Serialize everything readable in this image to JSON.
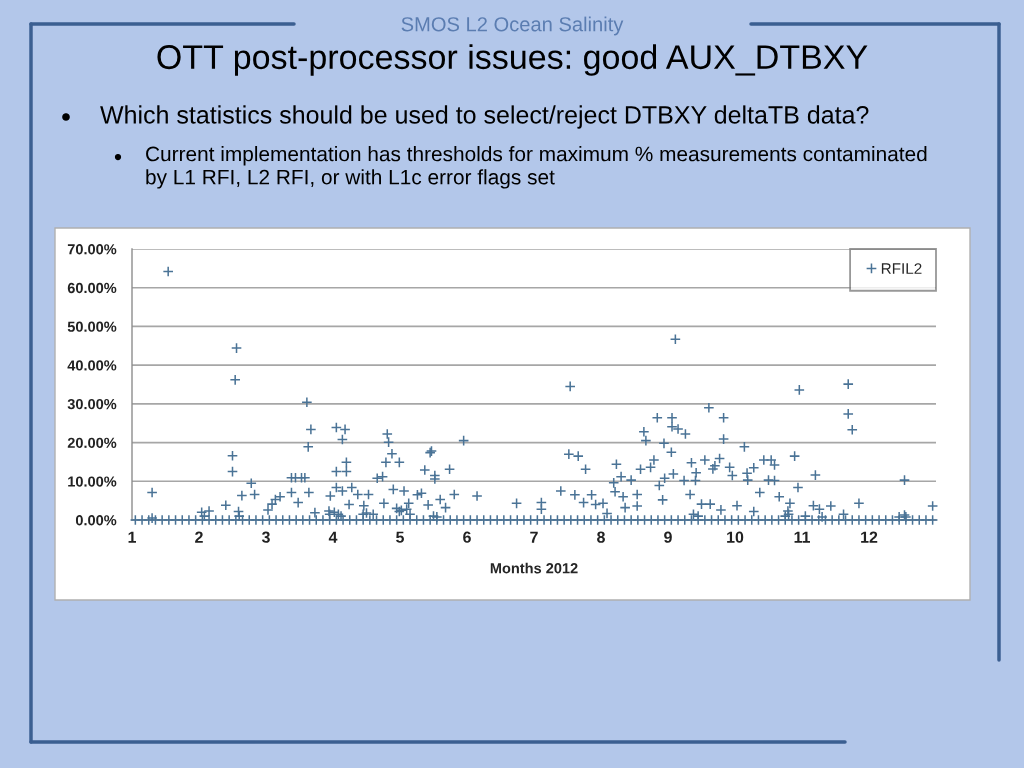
{
  "chart_data": {
    "type": "scatter",
    "title": "OTT post-processor issues: good AUX_DTBXY",
    "annotations": [
      "SMOS L2 Ocean Salinity",
      "Which statistics should be used to select/reject DTBXY deltaTB data?",
      "Current implementation has thresholds for maximum % measurements contaminated\nby L1 RFI, L2 RFI, or with L1c error flags set"
    ],
    "xlabel": "Months 2012",
    "xlim": [
      1,
      13
    ],
    "xticks": [
      1,
      2,
      3,
      4,
      5,
      6,
      7,
      8,
      9,
      10,
      11,
      12
    ],
    "ylim": [
      0,
      70
    ],
    "yticks": [
      {
        "value": 0,
        "label": "0.00%"
      },
      {
        "value": 10,
        "label": "10.00%"
      },
      {
        "value": 20,
        "label": "20.00%"
      },
      {
        "value": 30,
        "label": "30.00%"
      },
      {
        "value": 40,
        "label": "40.00%"
      },
      {
        "value": 50,
        "label": "50.00%"
      },
      {
        "value": 60,
        "label": "60.00%"
      },
      {
        "value": 70,
        "label": "70.00%"
      }
    ],
    "grid": "y",
    "legend": "top right",
    "marker": "cross",
    "series": [
      {
        "name": "RFIL2",
        "color": "#4a7396",
        "x": [
          1.3,
          1.3,
          1.54,
          2.04,
          2.08,
          2.15,
          2.4,
          2.5,
          2.5,
          2.54,
          2.56,
          2.59,
          2.6,
          2.64,
          2.78,
          2.83,
          3.03,
          3.09,
          3.14,
          3.21,
          3.38,
          3.38,
          3.44,
          3.48,
          3.53,
          3.58,
          3.61,
          3.63,
          3.64,
          3.67,
          3.73,
          3.94,
          3.95,
          3.96,
          4.02,
          4.05,
          4.05,
          4.05,
          4.08,
          4.12,
          4.14,
          4.14,
          4.18,
          4.2,
          4.2,
          4.24,
          4.28,
          4.37,
          4.45,
          4.46,
          4.5,
          4.53,
          4.6,
          4.66,
          4.74,
          4.76,
          4.79,
          4.81,
          4.83,
          4.88,
          4.9,
          4.95,
          4.99,
          4.99,
          5.02,
          5.06,
          5.1,
          5.13,
          5.15,
          5.26,
          5.32,
          5.37,
          5.42,
          5.45,
          5.47,
          5.5,
          5.52,
          5.52,
          5.55,
          5.6,
          5.68,
          5.74,
          5.81,
          5.95,
          6.15,
          6.74,
          7.11,
          7.11,
          7.4,
          7.52,
          7.54,
          7.61,
          7.66,
          7.74,
          7.77,
          7.86,
          7.92,
          8.03,
          8.09,
          8.19,
          8.21,
          8.23,
          8.3,
          8.33,
          8.36,
          8.45,
          8.54,
          8.54,
          8.59,
          8.64,
          8.67,
          8.74,
          8.79,
          8.84,
          8.87,
          8.92,
          8.94,
          8.95,
          9.05,
          9.06,
          9.06,
          9.08,
          9.11,
          9.15,
          9.24,
          9.26,
          9.33,
          9.35,
          9.38,
          9.41,
          9.42,
          9.45,
          9.5,
          9.55,
          9.61,
          9.63,
          9.67,
          9.7,
          9.77,
          9.79,
          9.83,
          9.83,
          9.92,
          9.96,
          10.03,
          10.14,
          10.18,
          10.19,
          10.28,
          10.28,
          10.37,
          10.43,
          10.5,
          10.54,
          10.59,
          10.59,
          10.66,
          10.75,
          10.79,
          10.8,
          10.82,
          10.89,
          10.94,
          10.96,
          11.05,
          11.17,
          11.2,
          11.26,
          11.3,
          11.43,
          11.62,
          11.69,
          11.69,
          11.75,
          11.85,
          12.45,
          12.53,
          12.53,
          12.55,
          12.95,
          1.05,
          1.15,
          1.25,
          1.35,
          1.45,
          1.55,
          1.65,
          1.75,
          1.85,
          1.95,
          2.05,
          2.15,
          2.25,
          2.35,
          2.45,
          2.55,
          2.65,
          2.75,
          2.85,
          2.95,
          3.05,
          3.15,
          3.25,
          3.35,
          3.45,
          3.55,
          3.65,
          3.75,
          3.85,
          3.95,
          4.05,
          4.15,
          4.25,
          4.35,
          4.45,
          4.55,
          4.65,
          4.75,
          4.85,
          4.95,
          5.05,
          5.15,
          5.25,
          5.35,
          5.45,
          5.55,
          5.65,
          5.75,
          5.85,
          5.95,
          6.05,
          6.15,
          6.25,
          6.35,
          6.45,
          6.55,
          6.65,
          6.75,
          6.85,
          6.95,
          7.05,
          7.15,
          7.25,
          7.35,
          7.45,
          7.55,
          7.65,
          7.75,
          7.85,
          7.95,
          8.05,
          8.15,
          8.25,
          8.35,
          8.45,
          8.55,
          8.65,
          8.75,
          8.85,
          8.95,
          9.05,
          9.15,
          9.25,
          9.35,
          9.45,
          9.55,
          9.65,
          9.75,
          9.85,
          9.95,
          10.05,
          10.15,
          10.25,
          10.35,
          10.45,
          10.55,
          10.65,
          10.75,
          10.85,
          10.95,
          11.05,
          11.15,
          11.25,
          11.35,
          11.45,
          11.55,
          11.65,
          11.75,
          11.85,
          11.95,
          12.05,
          12.15,
          12.25,
          12.35,
          12.45,
          12.55,
          12.65,
          12.75,
          12.85,
          12.95
        ],
        "values": [
          7.1,
          0.5,
          64.2,
          2.0,
          1.0,
          2.3,
          3.8,
          16.6,
          12.5,
          36.2,
          44.4,
          2.2,
          1.0,
          6.3,
          9.5,
          6.6,
          2.6,
          4.1,
          5.3,
          6.0,
          10.9,
          7.1,
          10.9,
          4.5,
          10.9,
          10.9,
          30.4,
          18.9,
          7.1,
          23.4,
          1.9,
          2.3,
          1.5,
          6.2,
          2.0,
          23.9,
          12.5,
          8.4,
          1.5,
          1.0,
          20.8,
          7.5,
          23.4,
          14.9,
          12.5,
          4.0,
          8.4,
          6.6,
          1.5,
          3.7,
          1.8,
          6.6,
          1.5,
          10.8,
          11.2,
          4.3,
          14.9,
          22.2,
          20.1,
          17.1,
          7.9,
          3.0,
          14.9,
          2.2,
          2.5,
          7.5,
          2.8,
          4.3,
          1.5,
          6.5,
          6.9,
          12.9,
          3.9,
          17.4,
          17.8,
          1.0,
          11.5,
          10.6,
          0.8,
          5.3,
          3.2,
          13.1,
          6.6,
          20.5,
          6.2,
          4.3,
          4.5,
          2.8,
          7.5,
          17.0,
          34.5,
          6.5,
          16.5,
          4.5,
          13.1,
          6.5,
          4.0,
          4.3,
          1.7,
          9.6,
          7.3,
          14.4,
          11.2,
          6.0,
          3.2,
          10.3,
          6.6,
          3.6,
          13.1,
          22.8,
          20.5,
          13.6,
          15.5,
          26.4,
          8.9,
          5.2,
          19.8,
          10.8,
          17.5,
          26.4,
          24.1,
          11.9,
          46.7,
          23.5,
          10.2,
          22.2,
          6.6,
          14.8,
          1.5,
          10.2,
          12.2,
          1.0,
          4.1,
          15.5,
          29.0,
          4.1,
          13.2,
          14.0,
          15.9,
          2.6,
          26.4,
          20.9,
          13.6,
          11.5,
          3.7,
          18.9,
          12.1,
          10.3,
          13.5,
          2.2,
          7.1,
          15.5,
          10.3,
          15.5,
          14.2,
          10.2,
          6.0,
          1.0,
          2.3,
          1.5,
          4.3,
          16.5,
          8.4,
          33.6,
          1.0,
          3.7,
          11.6,
          2.8,
          0.8,
          3.6,
          1.5,
          35.1,
          27.4,
          23.3,
          4.3,
          0.8,
          10.3,
          1.3,
          0.8,
          3.6,
          0,
          0,
          0,
          0,
          0,
          0,
          0,
          0,
          0,
          0,
          0,
          0,
          0,
          0,
          0,
          0,
          0,
          0,
          0,
          0,
          0,
          0,
          0,
          0,
          0,
          0,
          0,
          0,
          0,
          0,
          0,
          0,
          0,
          0,
          0,
          0,
          0,
          0,
          0,
          0,
          0,
          0,
          0,
          0,
          0,
          0,
          0,
          0,
          0,
          0,
          0,
          0,
          0,
          0,
          0,
          0,
          0,
          0,
          0,
          0,
          0,
          0,
          0,
          0,
          0,
          0,
          0,
          0,
          0,
          0,
          0,
          0,
          0,
          0,
          0,
          0,
          0,
          0,
          0,
          0,
          0,
          0,
          0,
          0,
          0,
          0,
          0,
          0,
          0,
          0,
          0,
          0,
          0,
          0,
          0,
          0,
          0,
          0,
          0,
          0,
          0,
          0,
          0,
          0,
          0,
          0,
          0,
          0,
          0,
          0,
          0,
          0,
          0,
          0,
          0,
          0,
          0,
          0,
          0,
          0
        ]
      }
    ]
  }
}
